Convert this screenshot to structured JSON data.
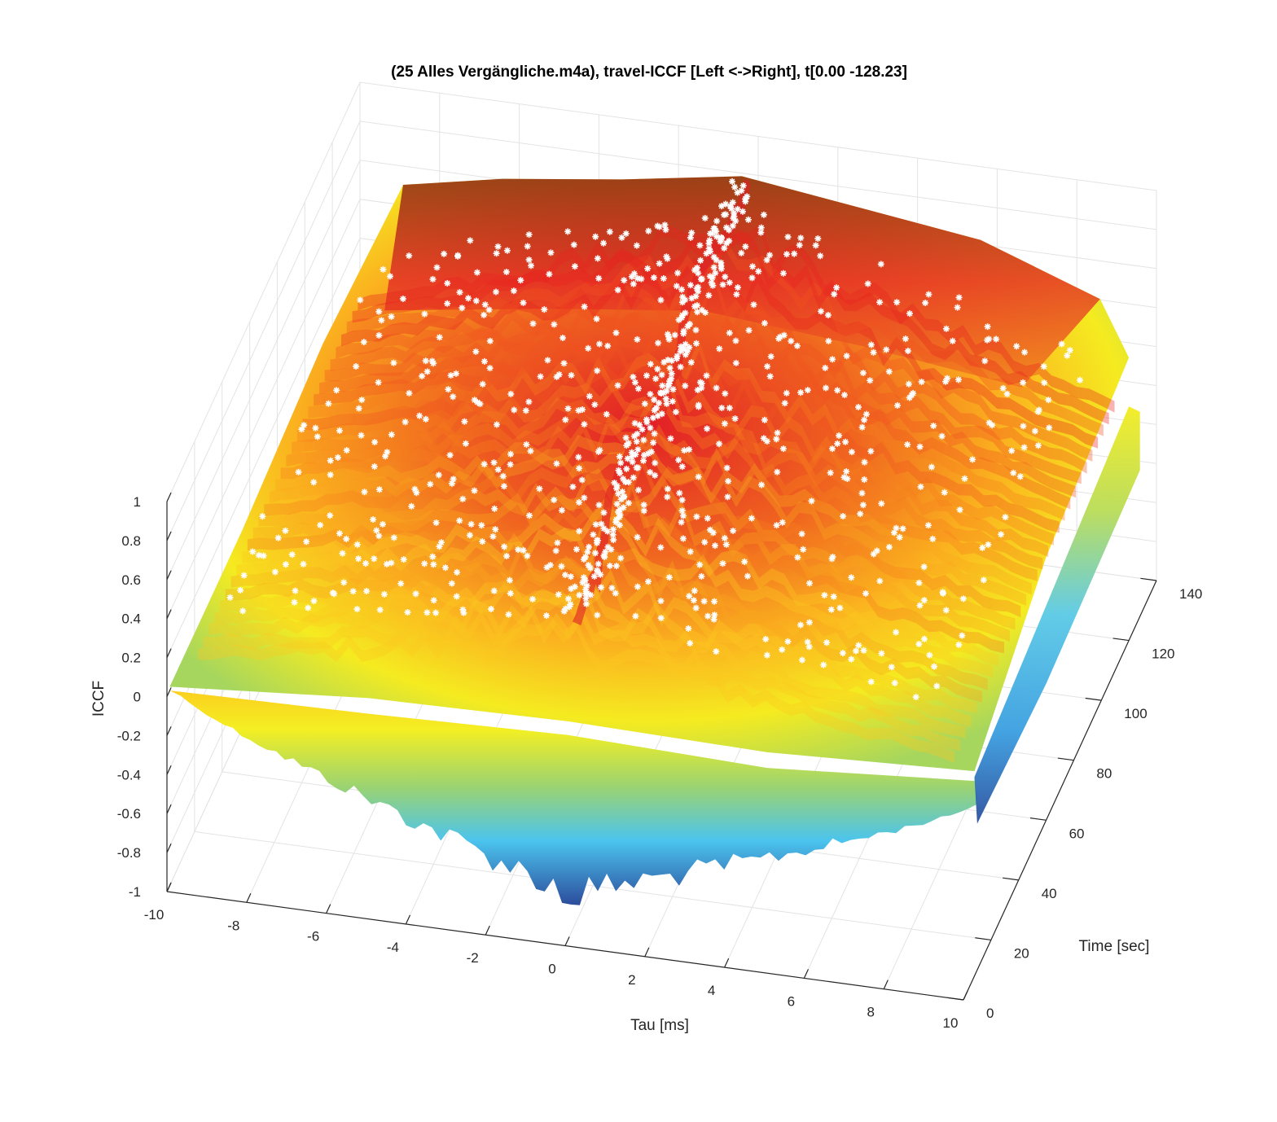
{
  "chart_data": {
    "type": "surface3d",
    "title": "(25 Alles Vergängliche.m4a), travel-ICCF [Left <->Right], t[0.00 -128.23]",
    "xlabel": "Tau [ms]",
    "ylabel": "Time [sec]",
    "zlabel": "ICCF",
    "x_ticks": [
      -10,
      -8,
      -6,
      -4,
      -2,
      0,
      2,
      4,
      6,
      8,
      10
    ],
    "y_ticks": [
      0,
      20,
      40,
      60,
      80,
      100,
      120,
      140
    ],
    "z_ticks": [
      -1,
      -0.8,
      -0.6,
      -0.4,
      -0.2,
      0,
      0.2,
      0.4,
      0.6,
      0.8,
      1
    ],
    "xlim": [
      -10,
      10
    ],
    "ylim": [
      0,
      140
    ],
    "zlim": [
      -1,
      1
    ],
    "time_range_sec": [
      0.0,
      128.23
    ],
    "peak_tau_ms": 0,
    "peak_marker": "white asterisk markers at per-frame ICCF maxima",
    "grid": true,
    "colormap": [
      "#2a4a9a",
      "#2f8fd6",
      "#48c8ee",
      "#8fd48a",
      "#f5ef1e",
      "#fbb51f",
      "#f5731f",
      "#e51f25",
      "#7a1515"
    ]
  }
}
